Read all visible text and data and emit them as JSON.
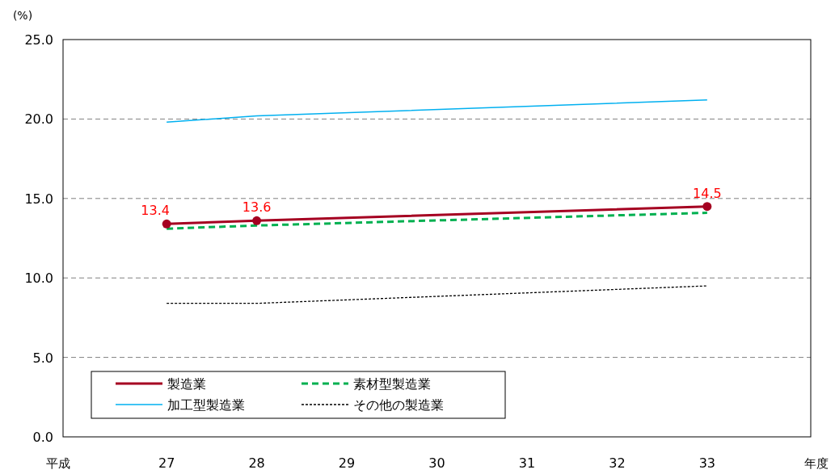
{
  "chart_data": {
    "type": "line",
    "ylabel": "(%)",
    "xlabel": "年度",
    "annotations": [
      "平成"
    ],
    "x": [
      27,
      28,
      33
    ],
    "xlim": [
      25.85,
      34.15
    ],
    "xticks": [
      27,
      28,
      29,
      30,
      31,
      32,
      33
    ],
    "ylim": [
      0,
      25
    ],
    "yticks": [
      {
        "value": 0,
        "label": "0.0"
      },
      {
        "value": 5,
        "label": "5.0"
      },
      {
        "value": 10,
        "label": "10.0"
      },
      {
        "value": 15,
        "label": "15.0"
      },
      {
        "value": 20,
        "label": "20.0"
      },
      {
        "value": 25,
        "label": "25.0"
      }
    ],
    "grid": "y",
    "legend": "bottom left",
    "series": [
      {
        "name": "製造業",
        "color": "#a50021",
        "values": [
          13.4,
          13.6,
          14.5
        ],
        "marker": "circle",
        "line_style": "solid",
        "value_labels": [
          "13.4",
          "13.6",
          "14.5"
        ]
      },
      {
        "name": "素材型製造業",
        "color": "#00b050",
        "values": [
          13.1,
          13.3,
          14.1
        ],
        "line_style": "dashed"
      },
      {
        "name": "加工型製造業",
        "color": "#00b0f0",
        "values": [
          19.8,
          20.2,
          21.2
        ],
        "line_style": "solid"
      },
      {
        "name": "その他の製造業",
        "color": "#000000",
        "values": [
          8.4,
          8.4,
          9.5
        ],
        "line_style": "dotted"
      }
    ]
  }
}
